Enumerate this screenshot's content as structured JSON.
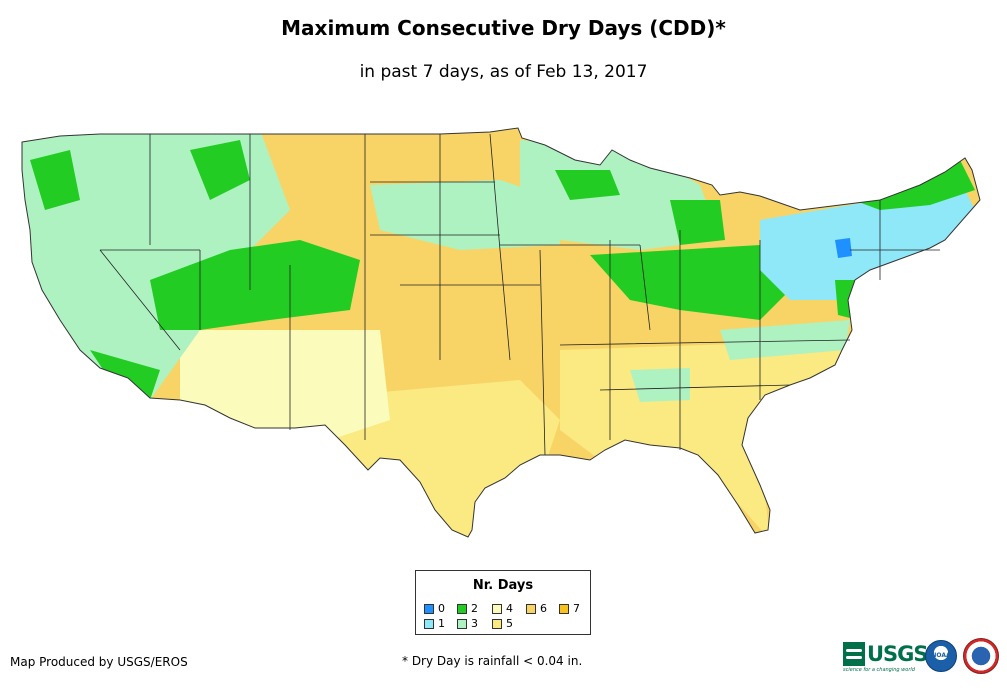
{
  "title": "Maximum Consecutive Dry Days (CDD)*",
  "subtitle": "in past 7 days, as of Feb 13, 2017",
  "legend": {
    "title": "Nr. Days",
    "items": [
      {
        "label": "0",
        "color": "#1e90ff"
      },
      {
        "label": "1",
        "color": "#8fe8f8"
      },
      {
        "label": "2",
        "color": "#22cc22"
      },
      {
        "label": "3",
        "color": "#aef2c2"
      },
      {
        "label": "4",
        "color": "#fbfbbb"
      },
      {
        "label": "5",
        "color": "#fbe982"
      },
      {
        "label": "6",
        "color": "#f8d466"
      },
      {
        "label": "7",
        "color": "#f7c21b"
      }
    ]
  },
  "credit": "Map Produced by USGS/EROS",
  "footnote": "* Dry Day is rainfall < 0.04 in.",
  "logos": {
    "usgs_text": "USGS",
    "usgs_tagline": "science for a changing world",
    "noaa_text": "NOAA"
  },
  "regions": {
    "pacific_northwest": "3",
    "california_nevada": "3",
    "desert_southwest": "4",
    "colorado_rockies": "2",
    "great_plains": "6",
    "southern_plains": "5",
    "lower_mississippi": "6",
    "southeast": "5",
    "ohio_valley": "2",
    "great_lakes_upper": "3",
    "northeast": "1"
  }
}
